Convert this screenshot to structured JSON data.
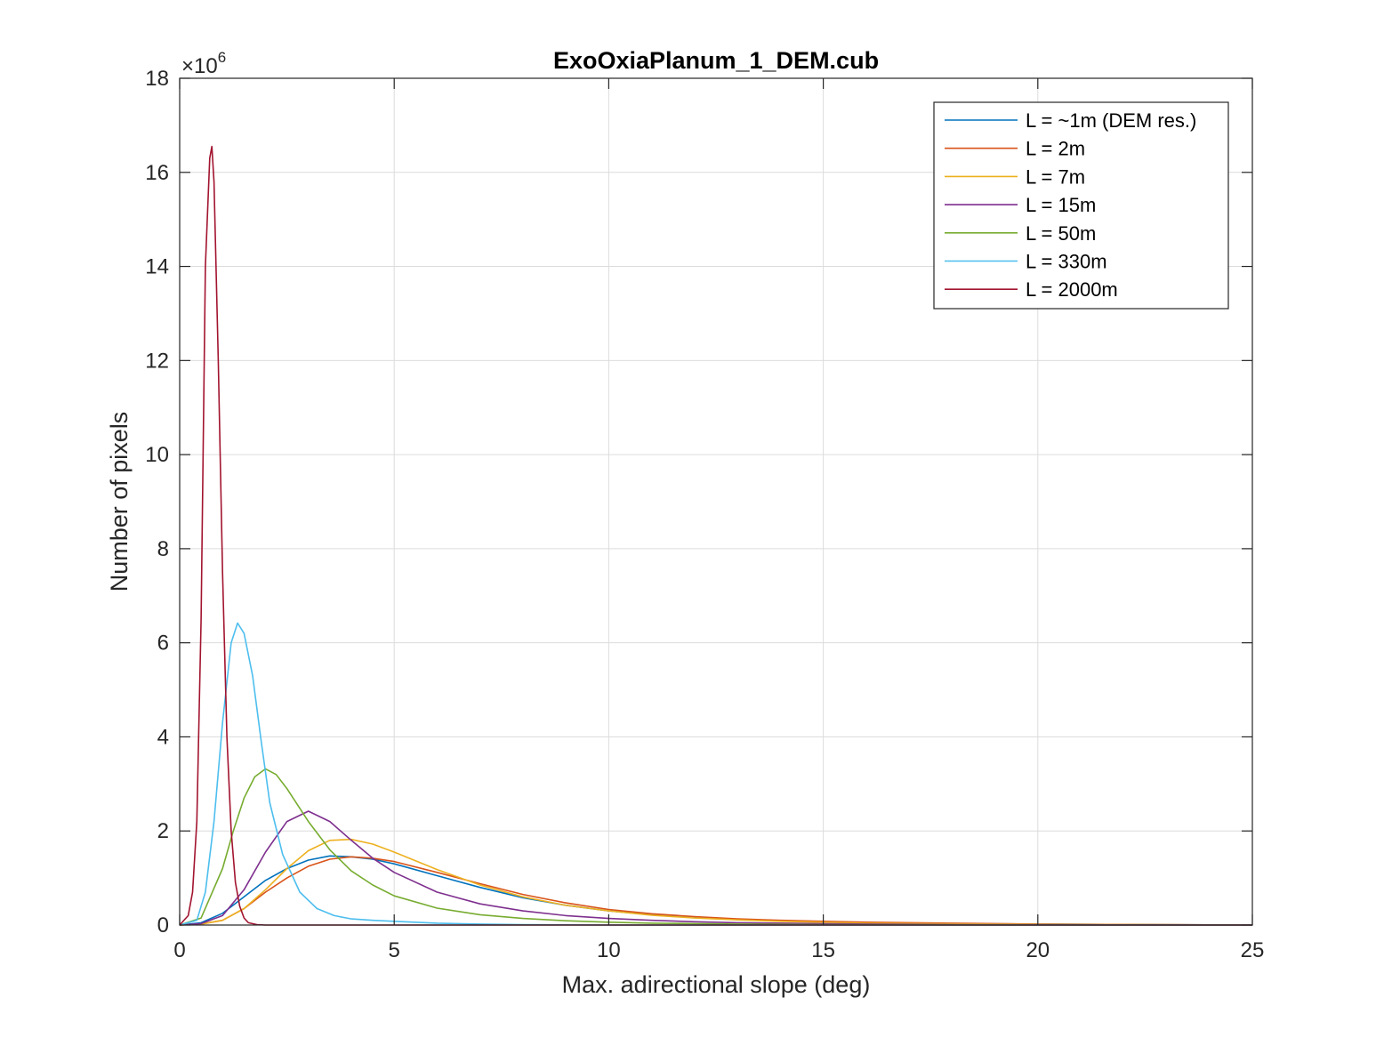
{
  "chart_data": {
    "type": "line",
    "title": "ExoOxiaPlanum_1_DEM.cub",
    "xlabel": "Max. adirectional slope (deg)",
    "ylabel": "Number of pixels",
    "xlim": [
      0,
      25
    ],
    "ylim": [
      0,
      18
    ],
    "y_multiplier": "×10",
    "y_multiplier_exp": "6",
    "xticks": [
      "0",
      "5",
      "10",
      "15",
      "20",
      "25"
    ],
    "yticks": [
      "0",
      "2",
      "4",
      "6",
      "8",
      "10",
      "12",
      "14",
      "16",
      "18"
    ],
    "grid": true,
    "legend_position": "top-right",
    "y_units": "millions of pixels",
    "series": [
      {
        "name": "L = ~1m (DEM res.)",
        "color": "#0072BD",
        "x": [
          0,
          0.5,
          1,
          1.5,
          2,
          2.5,
          3,
          3.5,
          4,
          4.5,
          5,
          6,
          7,
          8,
          9,
          10,
          11,
          12,
          13,
          14,
          15,
          16,
          18,
          20,
          25
        ],
        "y": [
          0,
          0.05,
          0.25,
          0.6,
          0.95,
          1.2,
          1.38,
          1.47,
          1.45,
          1.4,
          1.3,
          1.05,
          0.8,
          0.58,
          0.42,
          0.3,
          0.22,
          0.16,
          0.12,
          0.09,
          0.07,
          0.05,
          0.03,
          0.02,
          0
        ]
      },
      {
        "name": "L = 2m",
        "color": "#D95319",
        "x": [
          0,
          0.5,
          1,
          1.5,
          2,
          2.5,
          3,
          3.5,
          4,
          4.5,
          5,
          6,
          7,
          8,
          9,
          10,
          11,
          12,
          13,
          14,
          15,
          16,
          18,
          20,
          25
        ],
        "y": [
          0,
          0.02,
          0.1,
          0.35,
          0.7,
          1.0,
          1.25,
          1.4,
          1.45,
          1.42,
          1.35,
          1.12,
          0.88,
          0.65,
          0.47,
          0.33,
          0.24,
          0.18,
          0.13,
          0.1,
          0.08,
          0.06,
          0.04,
          0.02,
          0
        ]
      },
      {
        "name": "L = 7m",
        "color": "#EDB120",
        "x": [
          0,
          0.5,
          1,
          1.5,
          2,
          2.5,
          3,
          3.5,
          4,
          4.5,
          5,
          6,
          7,
          8,
          9,
          10,
          11,
          12,
          13,
          14,
          15,
          16,
          18,
          20,
          25
        ],
        "y": [
          0,
          0.02,
          0.1,
          0.35,
          0.75,
          1.2,
          1.58,
          1.8,
          1.82,
          1.72,
          1.55,
          1.18,
          0.85,
          0.6,
          0.42,
          0.3,
          0.21,
          0.15,
          0.11,
          0.08,
          0.06,
          0.04,
          0.025,
          0.015,
          0
        ]
      },
      {
        "name": "L = 15m",
        "color": "#7E2F8E",
        "x": [
          0,
          0.5,
          1,
          1.5,
          2,
          2.5,
          3,
          3.5,
          4,
          4.5,
          5,
          6,
          7,
          8,
          9,
          10,
          11,
          12,
          13,
          14,
          15,
          16,
          18,
          20,
          25
        ],
        "y": [
          0,
          0.03,
          0.2,
          0.75,
          1.55,
          2.2,
          2.42,
          2.2,
          1.8,
          1.42,
          1.12,
          0.7,
          0.45,
          0.3,
          0.2,
          0.14,
          0.1,
          0.07,
          0.05,
          0.04,
          0.03,
          0.02,
          0.01,
          0.005,
          0
        ]
      },
      {
        "name": "L = 50m",
        "color": "#77AC30",
        "x": [
          0,
          0.5,
          1,
          1.25,
          1.5,
          1.75,
          2,
          2.25,
          2.5,
          3,
          3.5,
          4,
          4.5,
          5,
          6,
          7,
          8,
          9,
          10,
          11,
          12,
          13,
          15,
          20,
          25
        ],
        "y": [
          0,
          0.15,
          1.2,
          2.0,
          2.7,
          3.15,
          3.32,
          3.2,
          2.9,
          2.2,
          1.6,
          1.15,
          0.85,
          0.62,
          0.36,
          0.22,
          0.14,
          0.09,
          0.06,
          0.04,
          0.03,
          0.02,
          0.01,
          0,
          0
        ]
      },
      {
        "name": "L = 330m",
        "color": "#4DBEEE",
        "x": [
          0,
          0.4,
          0.6,
          0.8,
          1.0,
          1.2,
          1.35,
          1.5,
          1.7,
          1.9,
          2.1,
          2.4,
          2.8,
          3.2,
          3.6,
          4.0,
          4.5,
          5,
          6,
          7,
          8,
          10,
          15,
          20,
          25
        ],
        "y": [
          0,
          0.1,
          0.7,
          2.2,
          4.3,
          6.0,
          6.42,
          6.2,
          5.3,
          3.9,
          2.6,
          1.5,
          0.7,
          0.35,
          0.2,
          0.13,
          0.1,
          0.08,
          0.04,
          0.02,
          0.01,
          0,
          0,
          0,
          0
        ]
      },
      {
        "name": "L = 2000m",
        "color": "#A2142F",
        "x": [
          0,
          0.2,
          0.3,
          0.4,
          0.5,
          0.6,
          0.7,
          0.75,
          0.8,
          0.9,
          1.0,
          1.1,
          1.2,
          1.3,
          1.4,
          1.5,
          1.6,
          1.8,
          2.0,
          5,
          10,
          15,
          20,
          25
        ],
        "y": [
          0,
          0.2,
          0.7,
          2.2,
          6.5,
          14.0,
          16.3,
          16.55,
          15.8,
          12.0,
          7.5,
          4.0,
          2.0,
          0.9,
          0.4,
          0.15,
          0.05,
          0.01,
          0,
          0,
          0,
          0,
          0,
          0
        ]
      }
    ]
  }
}
